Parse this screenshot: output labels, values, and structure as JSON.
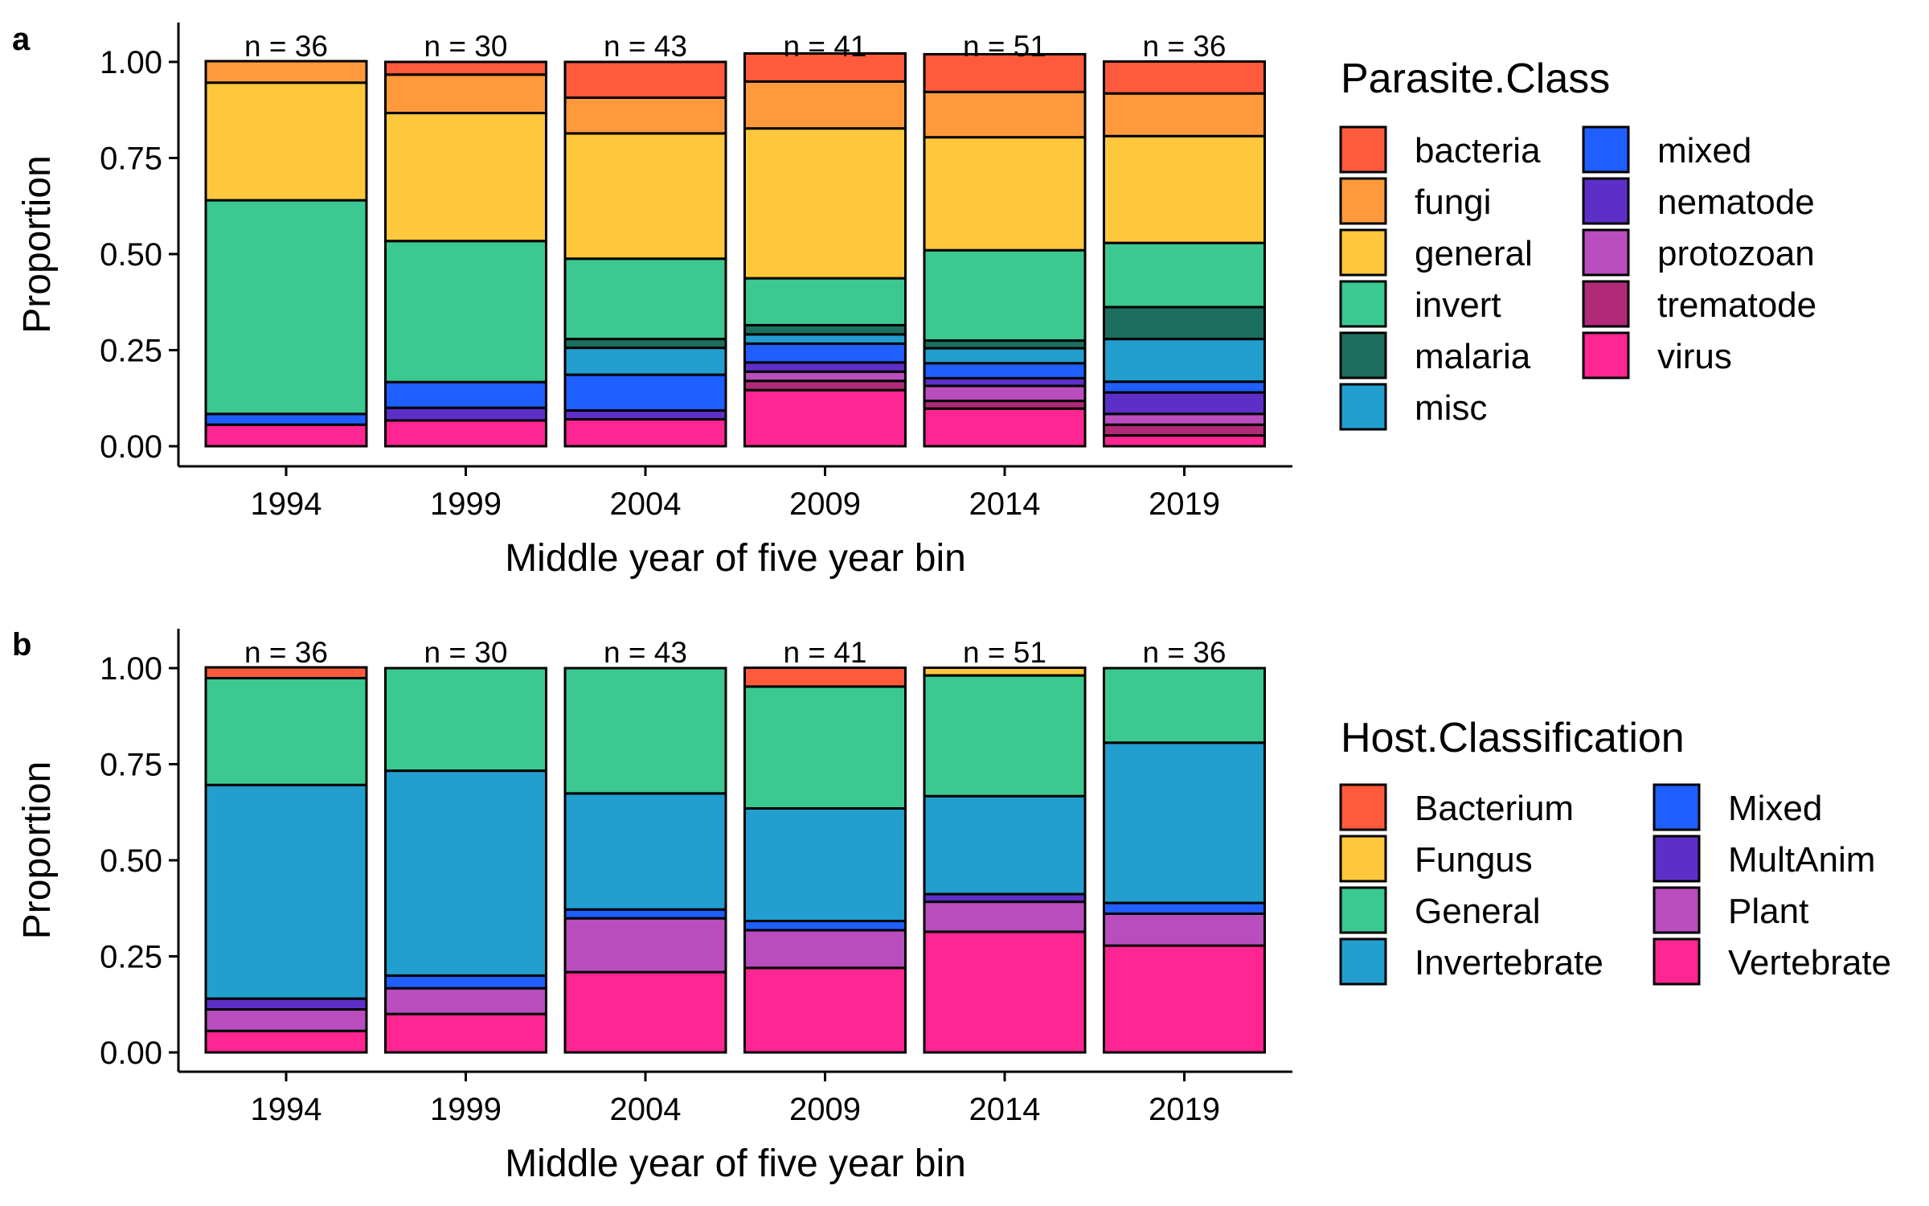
{
  "chart_data": [
    {
      "panel": "a",
      "type": "bar",
      "stacked": true,
      "title": "",
      "xlabel": "Middle year of five year bin",
      "ylabel": "Proportion",
      "ylim": [
        0,
        1.1
      ],
      "yticks": [
        "0.00",
        "0.25",
        "0.50",
        "0.75",
        "1.00"
      ],
      "categories": [
        "1994",
        "1999",
        "2004",
        "2009",
        "2014",
        "2019"
      ],
      "n_labels": [
        "n = 36",
        "n = 30",
        "n = 43",
        "n = 41",
        "n = 51",
        "n = 36"
      ],
      "legend_title": "Parasite.Class",
      "legend_position": "right",
      "legend_columns": [
        [
          "bacteria",
          "fungi",
          "general",
          "invert",
          "malaria",
          "misc"
        ],
        [
          "mixed",
          "nematode",
          "protozoan",
          "trematode",
          "virus"
        ]
      ],
      "stack_order": [
        "virus",
        "trematode",
        "protozoan",
        "nematode",
        "mixed",
        "misc",
        "malaria",
        "invert",
        "general",
        "fungi",
        "bacteria"
      ],
      "series": [
        {
          "name": "bacteria",
          "color": "#FF5A3C",
          "values": [
            0,
            0.033,
            0.093,
            0.073,
            0.098,
            0.083
          ]
        },
        {
          "name": "fungi",
          "color": "#FF9A3C",
          "values": [
            0.056,
            0.1,
            0.093,
            0.122,
            0.118,
            0.111
          ]
        },
        {
          "name": "general",
          "color": "#FFC83C",
          "values": [
            0.306,
            0.333,
            0.326,
            0.39,
            0.294,
            0.278
          ]
        },
        {
          "name": "invert",
          "color": "#3CC891",
          "values": [
            0.556,
            0.367,
            0.209,
            0.122,
            0.235,
            0.167
          ]
        },
        {
          "name": "malaria",
          "color": "#1C6F5E",
          "values": [
            0,
            0,
            0.023,
            0.024,
            0.02,
            0.083
          ]
        },
        {
          "name": "misc",
          "color": "#229ECF",
          "values": [
            0,
            0,
            0.07,
            0.024,
            0.039,
            0.111
          ]
        },
        {
          "name": "mixed",
          "color": "#1F5EFF",
          "values": [
            0.028,
            0.067,
            0.093,
            0.049,
            0.039,
            0.028
          ]
        },
        {
          "name": "nematode",
          "color": "#5E2FC8",
          "values": [
            0,
            0.033,
            0.023,
            0.024,
            0.02,
            0.056
          ]
        },
        {
          "name": "protozoan",
          "color": "#B94DBE",
          "values": [
            0,
            0,
            0,
            0.024,
            0.039,
            0.028
          ]
        },
        {
          "name": "trematode",
          "color": "#B02A78",
          "values": [
            0,
            0,
            0,
            0.024,
            0.02,
            0.028
          ]
        },
        {
          "name": "virus",
          "color": "#FF2592",
          "values": [
            0.056,
            0.067,
            0.07,
            0.146,
            0.098,
            0.028
          ]
        }
      ]
    },
    {
      "panel": "b",
      "type": "bar",
      "stacked": true,
      "title": "",
      "xlabel": "Middle year of five year bin",
      "ylabel": "Proportion",
      "ylim": [
        0,
        1.1
      ],
      "yticks": [
        "0.00",
        "0.25",
        "0.50",
        "0.75",
        "1.00"
      ],
      "categories": [
        "1994",
        "1999",
        "2004",
        "2009",
        "2014",
        "2019"
      ],
      "n_labels": [
        "n = 36",
        "n = 30",
        "n = 43",
        "n = 41",
        "n = 51",
        "n = 36"
      ],
      "legend_title": "Host.Classification",
      "legend_position": "right",
      "legend_columns": [
        [
          "Bacterium",
          "Fungus",
          "General",
          "Invertebrate"
        ],
        [
          "Mixed",
          "MultAnim",
          "Plant",
          "Vertebrate"
        ]
      ],
      "stack_order": [
        "Vertebrate",
        "Plant",
        "MultAnim",
        "Mixed",
        "Invertebrate",
        "General",
        "Fungus",
        "Bacterium"
      ],
      "series": [
        {
          "name": "Bacterium",
          "color": "#FF5A3C",
          "values": [
            0.028,
            0,
            0,
            0.049,
            0,
            0
          ]
        },
        {
          "name": "Fungus",
          "color": "#FFC83C",
          "values": [
            0,
            0,
            0,
            0,
            0.02,
            0
          ]
        },
        {
          "name": "General",
          "color": "#3CC891",
          "values": [
            0.278,
            0.267,
            0.326,
            0.317,
            0.314,
            0.194
          ]
        },
        {
          "name": "Invertebrate",
          "color": "#229ECF",
          "values": [
            0.556,
            0.533,
            0.302,
            0.293,
            0.255,
            0.417
          ]
        },
        {
          "name": "Mixed",
          "color": "#1F5EFF",
          "values": [
            0,
            0.033,
            0.023,
            0.024,
            0,
            0.028
          ]
        },
        {
          "name": "MultAnim",
          "color": "#5E2FC8",
          "values": [
            0.028,
            0,
            0,
            0,
            0.02,
            0
          ]
        },
        {
          "name": "Plant",
          "color": "#B94DBE",
          "values": [
            0.056,
            0.067,
            0.14,
            0.098,
            0.078,
            0.083
          ]
        },
        {
          "name": "Vertebrate",
          "color": "#FF2592",
          "values": [
            0.056,
            0.1,
            0.209,
            0.22,
            0.314,
            0.278
          ]
        }
      ]
    }
  ]
}
